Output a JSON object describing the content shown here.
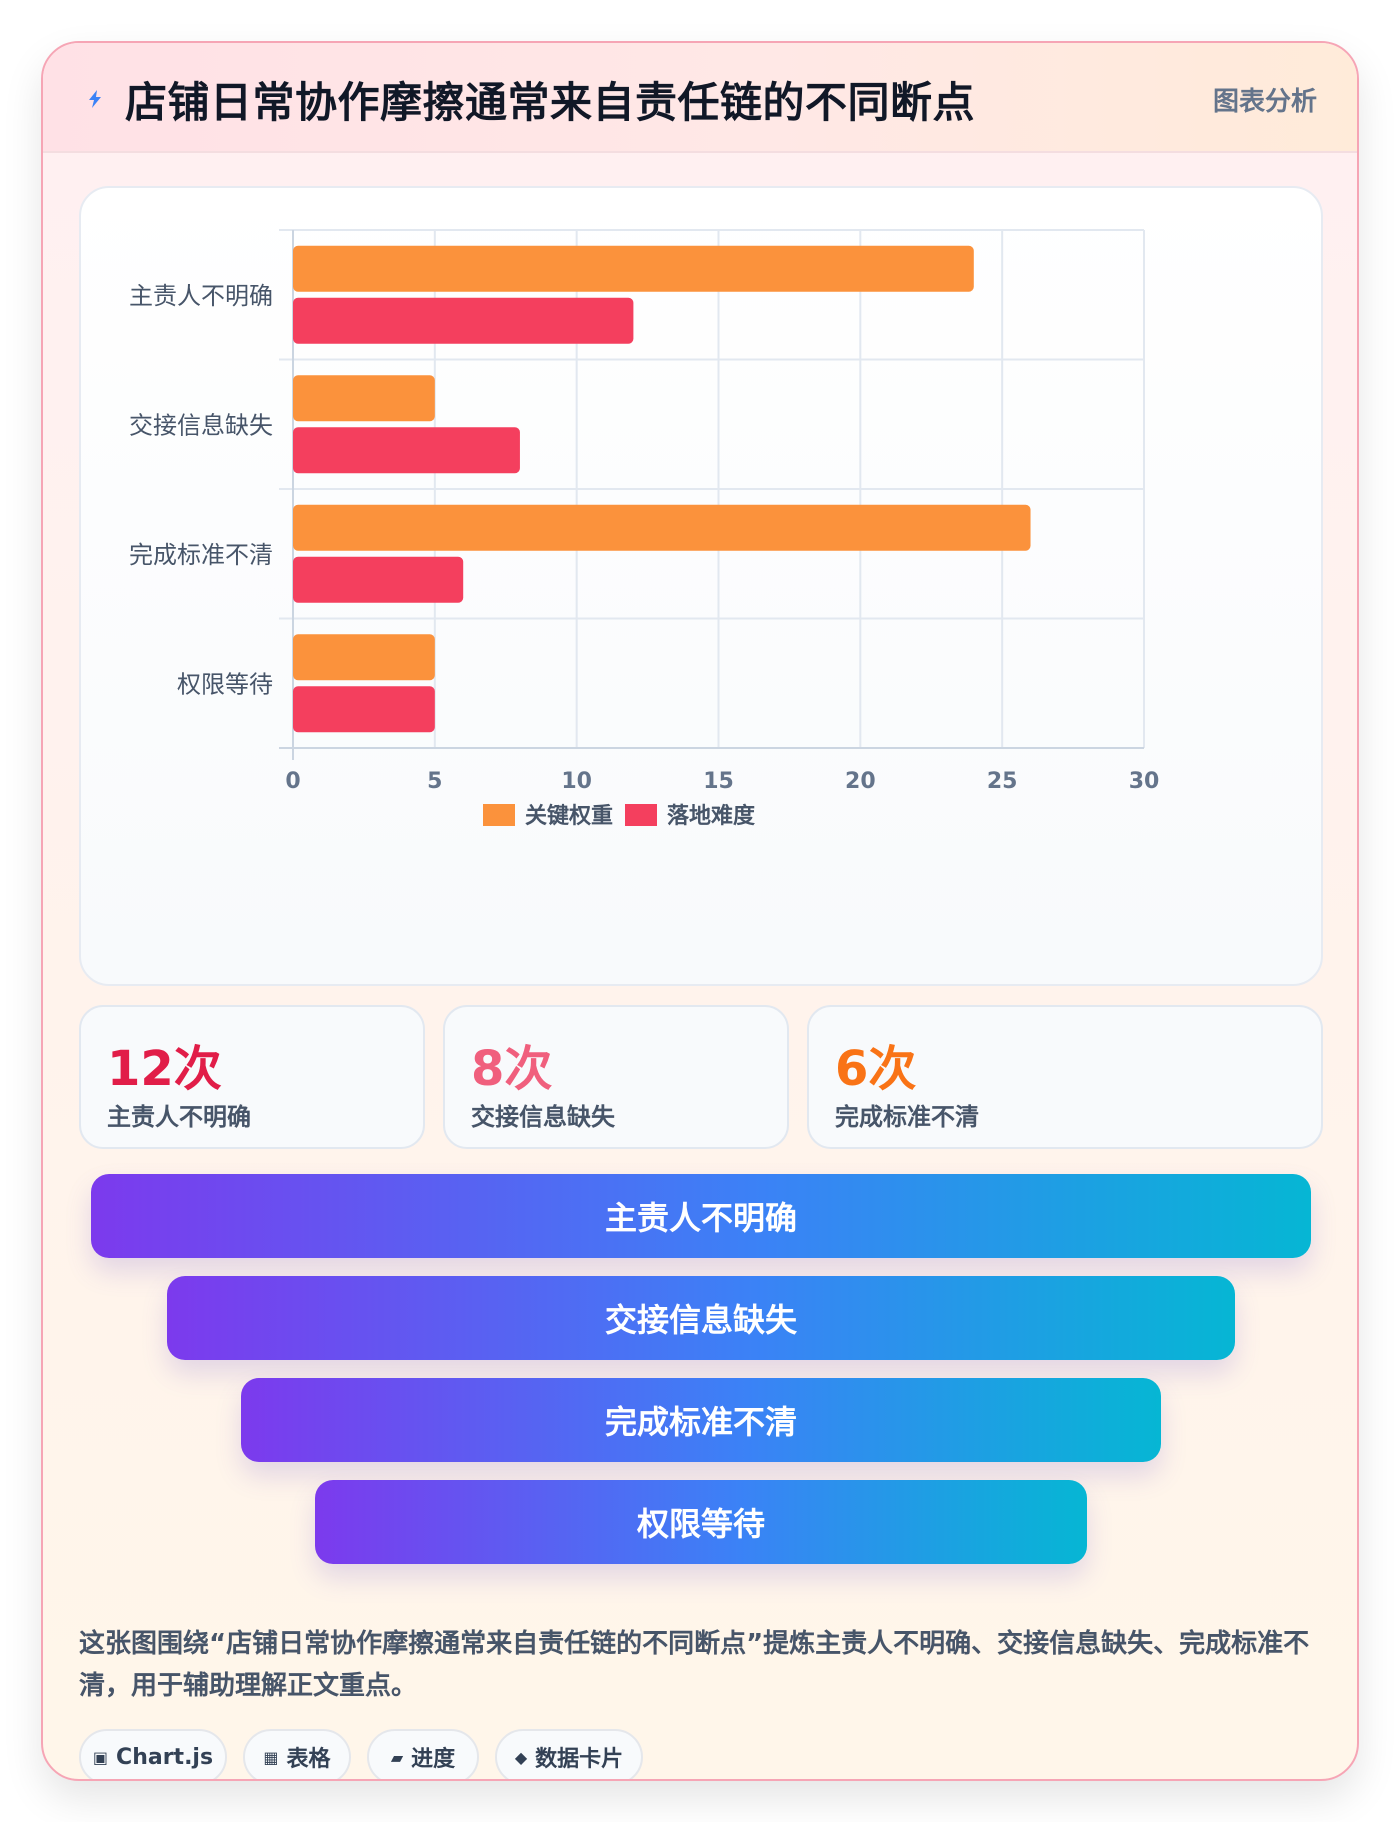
{
  "header": {
    "title": "店铺日常协作摩擦通常来自责任链的不同断点",
    "tag": "图表分析"
  },
  "chart_data": {
    "type": "bar",
    "orientation": "horizontal",
    "categories": [
      "主责人不明确",
      "交接信息缺失",
      "完成标准不清",
      "权限等待"
    ],
    "series": [
      {
        "name": "关键权重",
        "values": [
          24,
          5,
          26,
          5
        ],
        "color": "#fb923c"
      },
      {
        "name": "落地难度",
        "values": [
          12,
          8,
          6,
          5
        ],
        "color": "#f43f5e"
      }
    ],
    "xlim": [
      0,
      30
    ],
    "xticks": [
      "0",
      "5",
      "10",
      "15",
      "20",
      "25",
      "30"
    ],
    "grid": true,
    "legend_position": "bottom-center"
  },
  "stats": [
    {
      "value": "12次",
      "label": "主责人不明确",
      "color": "#e11d48"
    },
    {
      "value": "8次",
      "label": "交接信息缺失",
      "color": "#f05f7d"
    },
    {
      "value": "6次",
      "label": "完成标准不清",
      "color": "#f97316"
    }
  ],
  "funnel": [
    "主责人不明确",
    "交接信息缺失",
    "完成标准不清",
    "权限等待"
  ],
  "summary": "这张图围绕“店铺日常协作摩擦通常来自责任链的不同断点”提炼主责人不明确、交接信息缺失、完成标准不清，用于辅助理解正文重点。",
  "chips": [
    {
      "icon": "▣",
      "label": "Chart.js"
    },
    {
      "icon": "▦",
      "label": "表格"
    },
    {
      "icon": "▰",
      "label": "进度"
    },
    {
      "icon": "◆",
      "label": "数据卡片"
    }
  ]
}
